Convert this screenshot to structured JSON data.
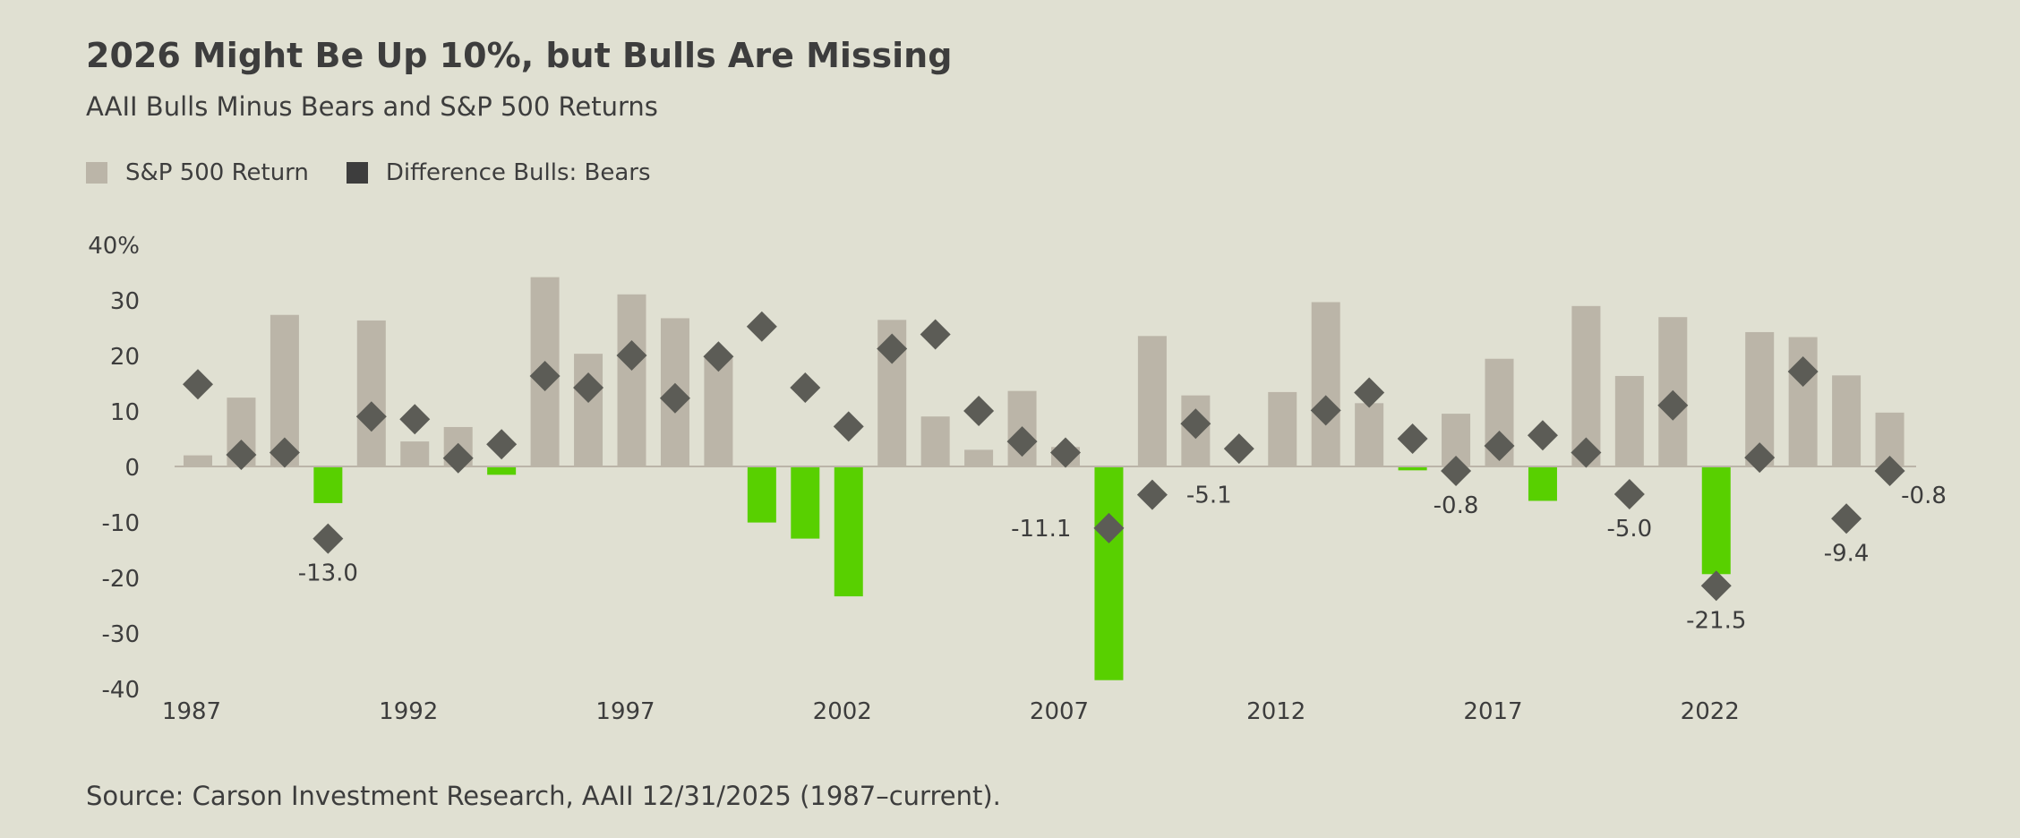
{
  "colors": {
    "background": "#e0e0d2",
    "positive_bar": "#bbb5a8",
    "negative_bar": "#58d000",
    "diamond": "#5c5c56",
    "text": "#3d3d3d",
    "zero_line": "#bbb5a8"
  },
  "chart_data": {
    "type": "bar",
    "title": "2026 Might Be Up 10%, but Bulls Are Missing",
    "subtitle": "AAII Bulls Minus Bears and S&P 500 Returns",
    "xlabel": "",
    "ylabel": "",
    "ylim": [
      -40,
      40
    ],
    "y_ticks": [
      "40%",
      "30",
      "20",
      "10",
      "0",
      "-10",
      "-20",
      "-30",
      "-40"
    ],
    "x_tick_labels": [
      "1987",
      "1992",
      "1997",
      "2002",
      "2007",
      "2012",
      "2017",
      "2022"
    ],
    "legend_placement": "top-left",
    "grid": false,
    "x": [
      1987,
      1988,
      1989,
      1990,
      1991,
      1992,
      1993,
      1994,
      1995,
      1996,
      1997,
      1998,
      1999,
      2000,
      2001,
      2002,
      2003,
      2004,
      2005,
      2006,
      2007,
      2008,
      2009,
      2010,
      2011,
      2012,
      2013,
      2014,
      2015,
      2016,
      2017,
      2018,
      2019,
      2020,
      2021,
      2022,
      2023,
      2024,
      2025,
      2026
    ],
    "series": [
      {
        "name": "S&P 500 Return",
        "kind": "bar",
        "values": [
          2.0,
          12.4,
          27.3,
          -6.6,
          26.3,
          4.5,
          7.1,
          -1.5,
          34.1,
          20.3,
          31.0,
          26.7,
          19.5,
          -10.1,
          -13.0,
          -23.4,
          26.4,
          9.0,
          3.0,
          13.6,
          3.5,
          -38.5,
          23.5,
          12.8,
          0.0,
          13.4,
          29.6,
          11.4,
          -0.7,
          9.5,
          19.4,
          -6.2,
          28.9,
          16.3,
          26.9,
          -19.4,
          24.2,
          23.3,
          16.4,
          9.7
        ]
      },
      {
        "name": "Difference Bulls: Bears",
        "kind": "diamond",
        "values": [
          14.8,
          2.1,
          2.5,
          -13.0,
          9.0,
          8.5,
          1.5,
          4.0,
          16.3,
          14.2,
          20.0,
          12.3,
          19.8,
          25.2,
          14.2,
          7.2,
          21.2,
          23.8,
          10.0,
          4.5,
          2.5,
          -11.1,
          -5.1,
          7.7,
          3.2,
          null,
          10.1,
          13.3,
          5.0,
          -0.8,
          3.7,
          5.6,
          2.5,
          -5.0,
          11.0,
          -21.5,
          1.6,
          17.1,
          -9.4,
          -0.8
        ]
      }
    ],
    "point_labels": [
      {
        "year": 1990,
        "text": "-13.0",
        "pos": "below"
      },
      {
        "year": 2008,
        "text": "-11.1",
        "pos": "left"
      },
      {
        "year": 2009,
        "text": "-5.1",
        "pos": "right"
      },
      {
        "year": 2016,
        "text": "-0.8",
        "pos": "below"
      },
      {
        "year": 2020,
        "text": "-5.0",
        "pos": "below"
      },
      {
        "year": 2022,
        "text": "-21.5",
        "pos": "below"
      },
      {
        "year": 2025,
        "text": "-9.4",
        "pos": "below"
      },
      {
        "year": 2026,
        "text": "-0.8",
        "pos": "below-right"
      }
    ]
  },
  "legend": {
    "items": [
      {
        "label": "S&P 500 Return",
        "color": "#bbb5a8"
      },
      {
        "label": "Difference Bulls: Bears",
        "color": "#3d3d3d"
      }
    ]
  },
  "source": "Source: Carson Investment Research, AAII 12/31/2025 (1987–current)."
}
